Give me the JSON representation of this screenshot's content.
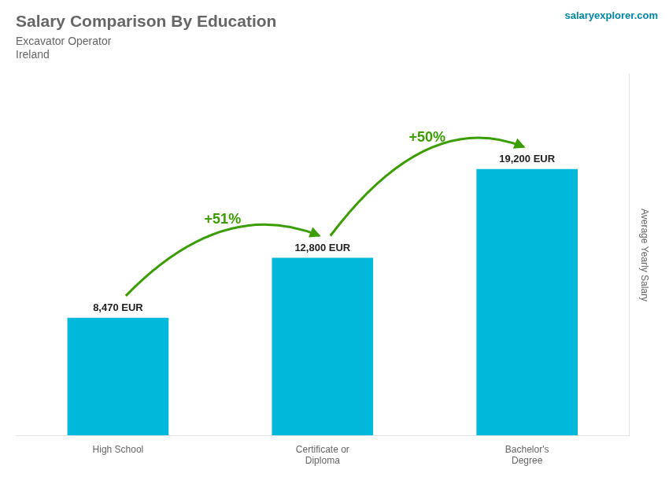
{
  "chart_data": {
    "type": "bar",
    "title": "Salary Comparison By Education",
    "subtitle": [
      "Excavator Operator",
      "Ireland"
    ],
    "ylabel": "Average Yearly Salary",
    "categories": [
      "High School",
      "Certificate or\nDiploma",
      "Bachelor's\nDegree"
    ],
    "values": [
      8470,
      12800,
      19200
    ],
    "value_labels": [
      "8,470 EUR",
      "12,800 EUR",
      "19,200 EUR"
    ],
    "data_labels": true,
    "color": "#00b8d9",
    "ylim": [
      0,
      26000
    ],
    "grid": false,
    "tick_labels": "x",
    "annotations": [
      "+51%",
      "+50%",
      "salaryexplorer.com"
    ]
  }
}
